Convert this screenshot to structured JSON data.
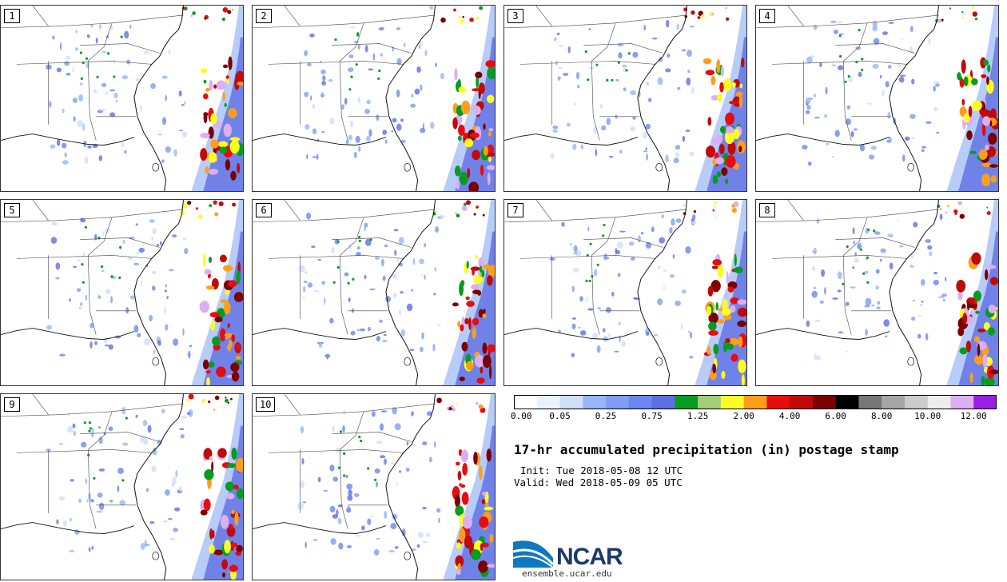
{
  "panels": [
    {
      "label": "1"
    },
    {
      "label": "2"
    },
    {
      "label": "3"
    },
    {
      "label": "4"
    },
    {
      "label": "5"
    },
    {
      "label": "6"
    },
    {
      "label": "7"
    },
    {
      "label": "8"
    },
    {
      "label": "9"
    },
    {
      "label": "10"
    }
  ],
  "colorbar": {
    "colors": [
      "#ffffff",
      "#eaf2fe",
      "#cfdff9",
      "#98b6f5",
      "#7e9df3",
      "#6a86ef",
      "#5e6fe3",
      "#069c20",
      "#a3cd7b",
      "#fefd23",
      "#fb9f1b",
      "#e50d0f",
      "#be0a0b",
      "#7c0003",
      "#000000",
      "#777777",
      "#a5a5a5",
      "#cbcbcb",
      "#ededed",
      "#dcaef4",
      "#9a1ee3"
    ],
    "tick_labels": [
      "0.00",
      "0.05",
      "0.25",
      "0.75",
      "1.25",
      "2.00",
      "4.00",
      "6.00",
      "8.00",
      "10.00",
      "12.00"
    ]
  },
  "title": "17-hr accumulated precipitation (in) postage stamp",
  "init": "Init: Tue 2018-05-08 12 UTC",
  "valid": "Valid: Wed 2018-05-09 05 UTC",
  "logo": {
    "name": "NCAR",
    "url": "ensemble.ucar.edu",
    "brand_color": "#1b3a6b",
    "accent_color": "#0e78c0"
  }
}
